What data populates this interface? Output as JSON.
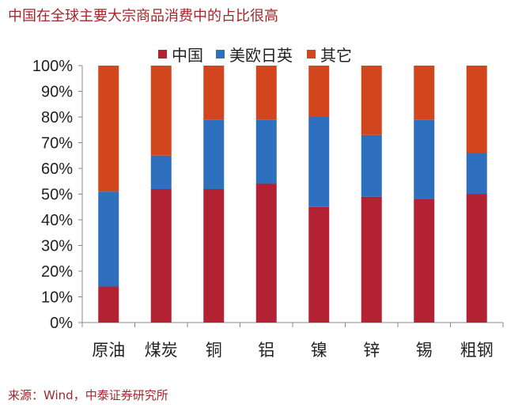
{
  "chart_data": {
    "type": "bar",
    "stacked": true,
    "title": "中国在全球主要大宗商品消费中的占比很高",
    "source": "来源：Wind，中泰证券研究所",
    "categories": [
      "原油",
      "煤炭",
      "铜",
      "铝",
      "镍",
      "锌",
      "锡",
      "粗钢"
    ],
    "series": [
      {
        "name": "中国",
        "color": "#B22232",
        "values": [
          14,
          52,
          52,
          54,
          45,
          49,
          48,
          50
        ]
      },
      {
        "name": "美欧日英",
        "color": "#2E6FBE",
        "values": [
          37,
          13,
          27,
          25,
          35,
          24,
          31,
          16
        ]
      },
      {
        "name": "其它",
        "color": "#D2461E",
        "values": [
          49,
          35,
          21,
          21,
          20,
          27,
          21,
          34
        ]
      }
    ],
    "ylim": [
      0,
      100
    ],
    "yticks": [
      "0%",
      "10%",
      "20%",
      "30%",
      "40%",
      "50%",
      "60%",
      "70%",
      "80%",
      "90%",
      "100%"
    ],
    "legend_position": "top",
    "grid": false
  }
}
